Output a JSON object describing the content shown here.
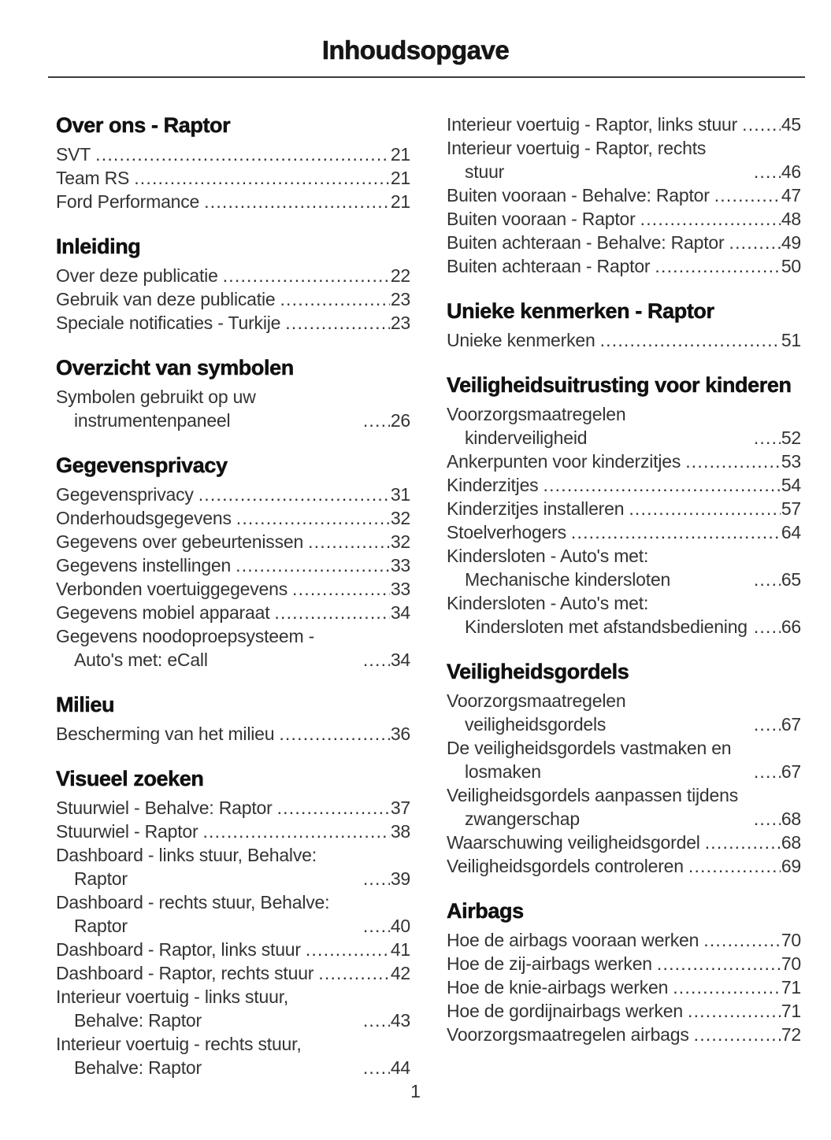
{
  "header": {
    "title": "Inhoudsopgave"
  },
  "footer": {
    "page_number": "1"
  },
  "colors": {
    "text_body": "#333333",
    "text_heading": "#111111",
    "rule": "#3c3c3c",
    "background": "#ffffff"
  },
  "columns": [
    {
      "sections": [
        {
          "heading": "Over ons - Raptor",
          "entries": [
            {
              "label": "SVT",
              "page": "21"
            },
            {
              "label": "Team RS",
              "page": "21"
            },
            {
              "label": "Ford Performance",
              "page": "21"
            }
          ]
        },
        {
          "heading": "Inleiding",
          "entries": [
            {
              "label": "Over deze publicatie",
              "page": "22"
            },
            {
              "label": "Gebruik van deze publicatie",
              "page": "23"
            },
            {
              "label": "Speciale notificaties - Turkije",
              "page": "23"
            }
          ]
        },
        {
          "heading": "Overzicht van symbolen",
          "entries": [
            {
              "label": "Symbolen gebruikt op uw instrumentenpaneel",
              "page": "26"
            }
          ]
        },
        {
          "heading": "Gegevensprivacy",
          "entries": [
            {
              "label": "Gegevensprivacy",
              "page": "31"
            },
            {
              "label": "Onderhoudsgegevens",
              "page": "32"
            },
            {
              "label": "Gegevens over gebeurtenissen",
              "page": "32"
            },
            {
              "label": "Gegevens instellingen",
              "page": "33"
            },
            {
              "label": "Verbonden voertuiggegevens",
              "page": "33"
            },
            {
              "label": "Gegevens mobiel apparaat",
              "page": "34"
            },
            {
              "label": "Gegevens noodoproepsysteem - Auto's met: eCall",
              "page": "34"
            }
          ]
        },
        {
          "heading": "Milieu",
          "entries": [
            {
              "label": "Bescherming van het milieu",
              "page": "36"
            }
          ]
        },
        {
          "heading": "Visueel zoeken",
          "entries": [
            {
              "label": "Stuurwiel - Behalve: Raptor",
              "page": "37"
            },
            {
              "label": "Stuurwiel - Raptor",
              "page": "38"
            },
            {
              "label": "Dashboard - links stuur, Behalve: Raptor",
              "page": "39"
            },
            {
              "label": "Dashboard - rechts stuur, Behalve: Raptor",
              "page": "40"
            },
            {
              "label": "Dashboard - Raptor, links stuur",
              "page": "41"
            },
            {
              "label": "Dashboard - Raptor, rechts stuur",
              "page": "42"
            },
            {
              "label": "Interieur voertuig - links stuur, Behalve: Raptor",
              "page": "43"
            },
            {
              "label": "Interieur voertuig - rechts stuur, Behalve: Raptor",
              "page": "44"
            }
          ]
        }
      ]
    },
    {
      "sections": [
        {
          "heading": null,
          "entries": [
            {
              "label": "Interieur voertuig - Raptor, links stuur",
              "page": "45"
            },
            {
              "label": "Interieur voertuig - Raptor, rechts stuur",
              "page": "46"
            },
            {
              "label": "Buiten vooraan - Behalve: Raptor",
              "page": "47"
            },
            {
              "label": "Buiten vooraan - Raptor",
              "page": "48"
            },
            {
              "label": "Buiten achteraan - Behalve: Raptor",
              "page": "49"
            },
            {
              "label": "Buiten achteraan - Raptor",
              "page": "50"
            }
          ]
        },
        {
          "heading": "Unieke kenmerken - Raptor",
          "entries": [
            {
              "label": "Unieke kenmerken",
              "page": "51"
            }
          ]
        },
        {
          "heading": "Veiligheidsuitrusting voor kinderen",
          "entries": [
            {
              "label": "Voorzorgsmaatregelen kinderveiligheid",
              "page": "52"
            },
            {
              "label": "Ankerpunten voor kinderzitjes",
              "page": "53"
            },
            {
              "label": "Kinderzitjes",
              "page": "54"
            },
            {
              "label": "Kinderzitjes installeren",
              "page": "57"
            },
            {
              "label": "Stoelverhogers",
              "page": "64"
            },
            {
              "label": "Kindersloten - Auto's met: Mechanische kindersloten",
              "page": "65"
            },
            {
              "label": "Kindersloten - Auto's met: Kindersloten met afstandsbediening",
              "page": "66"
            }
          ]
        },
        {
          "heading": "Veiligheidsgordels",
          "entries": [
            {
              "label": "Voorzorgsmaatregelen veiligheidsgordels",
              "page": "67"
            },
            {
              "label": "De veiligheidsgordels vastmaken en losmaken",
              "page": "67"
            },
            {
              "label": "Veiligheidsgordels aanpassen tijdens zwangerschap",
              "page": "68"
            },
            {
              "label": "Waarschuwing veiligheidsgordel",
              "page": "68"
            },
            {
              "label": "Veiligheidsgordels controleren",
              "page": "69"
            }
          ]
        },
        {
          "heading": "Airbags",
          "entries": [
            {
              "label": "Hoe de airbags vooraan werken",
              "page": "70"
            },
            {
              "label": "Hoe de zij-airbags werken",
              "page": "70"
            },
            {
              "label": "Hoe de knie-airbags werken",
              "page": "71"
            },
            {
              "label": "Hoe de gordijnairbags werken",
              "page": "71"
            },
            {
              "label": "Voorzorgsmaatregelen airbags",
              "page": "72"
            }
          ]
        }
      ]
    }
  ]
}
